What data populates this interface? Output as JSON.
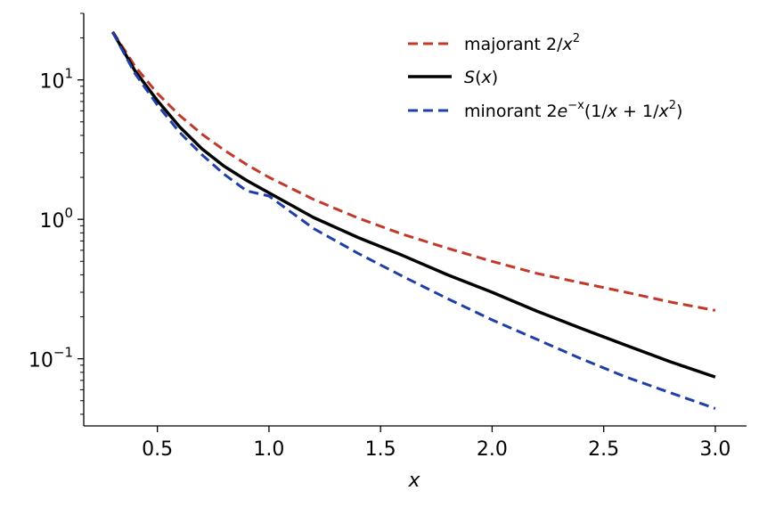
{
  "chart_data": {
    "type": "line",
    "xlabel": "x",
    "ylabel": "",
    "yscale": "log",
    "xlim": [
      0.17,
      3.14
    ],
    "ylim": [
      0.033,
      30
    ],
    "xticks": [
      "0.5",
      "1.0",
      "1.5",
      "2.0",
      "2.5",
      "3.0"
    ],
    "xtick_values": [
      0.5,
      1.0,
      1.5,
      2.0,
      2.5,
      3.0
    ],
    "yticks": [
      {
        "base": "10",
        "exp": "1",
        "value": 10
      },
      {
        "base": "10",
        "exp": "0",
        "value": 1
      },
      {
        "base": "10",
        "exp": "−1",
        "value": 0.1
      }
    ],
    "legend_position": "top-right",
    "grid": false,
    "x": [
      0.3,
      0.4,
      0.5,
      0.6,
      0.7,
      0.8,
      0.9,
      1.0,
      1.2,
      1.4,
      1.6,
      1.8,
      2.0,
      2.2,
      2.4,
      2.6,
      2.8,
      3.0
    ],
    "series": [
      {
        "key": "majorant",
        "legend_parts": [
          "majorant 2/",
          "x",
          "2",
          ""
        ],
        "color": "#c0392b",
        "dash": "dashed",
        "values": [
          22.2,
          12.5,
          8.0,
          5.56,
          4.08,
          3.13,
          2.47,
          2.0,
          1.39,
          1.02,
          0.78,
          0.62,
          0.5,
          0.41,
          0.35,
          0.3,
          0.255,
          0.222
        ]
      },
      {
        "key": "S",
        "legend_parts": [
          "S",
          "(",
          "x",
          ")"
        ],
        "color": "#000000",
        "dash": "solid",
        "values": [
          22.0,
          11.6,
          7.1,
          4.6,
          3.2,
          2.4,
          1.9,
          1.55,
          1.03,
          0.74,
          0.55,
          0.4,
          0.3,
          0.22,
          0.165,
          0.125,
          0.095,
          0.074
        ]
      },
      {
        "key": "minorant",
        "legend_parts": [
          "minorant 2",
          "e",
          "−x",
          "(1/",
          "x",
          " + 1/",
          "x",
          "2",
          ")"
        ],
        "color": "#1f3fa8",
        "dash": "dashed",
        "values": [
          21.9,
          11.1,
          6.6,
          4.2,
          2.9,
          2.1,
          1.6,
          1.47,
          0.86,
          0.57,
          0.39,
          0.27,
          0.19,
          0.138,
          0.1,
          0.074,
          0.057,
          0.044
        ]
      }
    ]
  }
}
